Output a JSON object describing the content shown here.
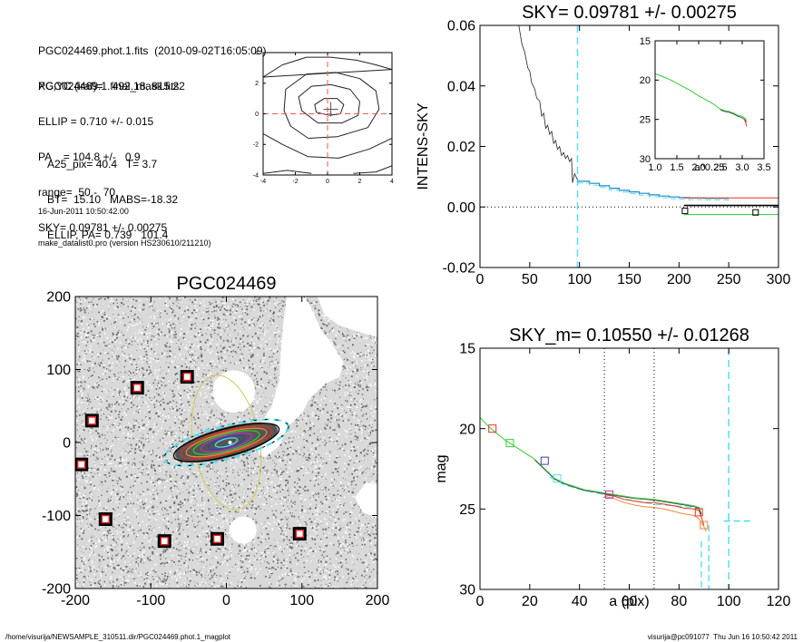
{
  "info": {
    "lines_a": [
      "PGC024469.phot.1.fits  (2010-09-02T16:05:09)",
      "PGC024469.1.final_mask.fits"
    ],
    "lines_b": [
      "XC,YC (iraf)=   492.18, 815.22",
      "ELLIP = 0.710 +/- 0.015",
      "PA    = 104.8 +/-   0.9",
      "range=  50.-  70.",
      "SKY= 0.09781 +/- 0.00275"
    ],
    "lines_c": [
      "A25_pix= 40.4   T= 3.7",
      "BT=  15.10   MABS=-18.32",
      "ELLIP, PA= 0.739   101.4"
    ],
    "lines_d": [
      "16-Jun-2011 10:50:42.00",
      "make_datalist0.pro (version HS230610/211210)"
    ]
  },
  "footer": {
    "left": "/home/visurija/NEWSAMPLE_310511.dir/PGC024469.phot.1_magplot",
    "right": "visurija@pc091077  Thu Jun 16 10:50:42 2011"
  },
  "colors": {
    "cyan": "#55ddee",
    "green": "#33cc33",
    "red": "#dd3322",
    "orange": "#ee8833",
    "blue": "#3344aa",
    "purple": "#bb33bb",
    "gray": "#777777",
    "yellow": "#cccc55"
  },
  "chart_data": [
    {
      "id": "contour",
      "type": "contour",
      "xlim": [
        -4,
        4
      ],
      "ylim": [
        -4,
        4
      ],
      "xticks": [
        -4,
        -2,
        0,
        2,
        4
      ],
      "yticks": [
        -4,
        -2,
        0,
        2,
        4
      ],
      "center": [
        0.2,
        0.3
      ],
      "contours": [
        [
          [
            0.1,
            -0.1
          ],
          [
            0.8,
            0
          ],
          [
            1.0,
            0.6
          ],
          [
            0.6,
            1.0
          ],
          [
            -0.2,
            1.0
          ],
          [
            -0.8,
            0.6
          ],
          [
            -0.7,
            0.1
          ]
        ],
        [
          [
            -0.6,
            -0.6
          ],
          [
            0.9,
            -0.6
          ],
          [
            1.9,
            -0.1
          ],
          [
            2.0,
            0.8
          ],
          [
            1.4,
            1.6
          ],
          [
            0.2,
            1.9
          ],
          [
            -1.0,
            1.8
          ],
          [
            -1.8,
            1.1
          ],
          [
            -1.6,
            0.2
          ]
        ],
        [
          [
            -1.2,
            -1.6
          ],
          [
            0.6,
            -1.5
          ],
          [
            2.5,
            -0.9
          ],
          [
            3.2,
            0.3
          ],
          [
            3.0,
            1.5
          ],
          [
            2.0,
            2.3
          ],
          [
            0.5,
            2.7
          ],
          [
            -1.3,
            2.6
          ],
          [
            -2.6,
            1.6
          ],
          [
            -2.7,
            0.2
          ],
          [
            -2.3,
            -0.8
          ]
        ],
        [
          [
            -4,
            -1.3
          ],
          [
            -2.8,
            -2.0
          ],
          [
            -1.2,
            -2.8
          ],
          [
            0.7,
            -2.9
          ],
          [
            2.6,
            -2.3
          ],
          [
            4,
            -1.6
          ]
        ],
        [
          [
            -4,
            2.4
          ],
          [
            -2.8,
            3.2
          ],
          [
            -1.3,
            3.7
          ],
          [
            0.2,
            3.7
          ],
          [
            1.8,
            3.5
          ],
          [
            3.0,
            3.2
          ],
          [
            4,
            2.9
          ]
        ]
      ],
      "outer_lines": [
        [
          [
            -4,
            -3.9
          ],
          [
            -2.5,
            -3.7
          ],
          [
            -1.0,
            -3.9
          ]
        ],
        [
          [
            1.6,
            -3.9
          ],
          [
            3.0,
            -3.8
          ],
          [
            4,
            -3.4
          ]
        ]
      ]
    },
    {
      "id": "sky",
      "type": "line",
      "title": "SKY= 0.09781 +/- 0.00275",
      "ylabel": "INTENS-SKY",
      "xlim": [
        0,
        300
      ],
      "ylim": [
        -0.02,
        0.06
      ],
      "xticks": [
        0,
        50,
        100,
        150,
        200,
        250,
        300
      ],
      "yticks": [
        -0.02,
        0.0,
        0.02,
        0.04,
        0.06
      ],
      "ytick_labels": [
        "-0.02",
        "0.00",
        "0.02",
        "0.04",
        "0.06"
      ],
      "vline": 98,
      "hline": 0,
      "profile_raw": [
        [
          38,
          0.062
        ],
        [
          42,
          0.054
        ],
        [
          45,
          0.051
        ],
        [
          48,
          0.046
        ],
        [
          50,
          0.045
        ],
        [
          52,
          0.041
        ],
        [
          55,
          0.039
        ],
        [
          57,
          0.036
        ],
        [
          60,
          0.035
        ],
        [
          62,
          0.03
        ],
        [
          64,
          0.031
        ],
        [
          66,
          0.026
        ],
        [
          68,
          0.027
        ],
        [
          70,
          0.024
        ],
        [
          72,
          0.025
        ],
        [
          74,
          0.021
        ],
        [
          76,
          0.022
        ],
        [
          78,
          0.019
        ],
        [
          80,
          0.02
        ],
        [
          82,
          0.017
        ],
        [
          84,
          0.018
        ],
        [
          86,
          0.016
        ],
        [
          88,
          0.017
        ],
        [
          90,
          0.015
        ],
        [
          92,
          0.016
        ],
        [
          93,
          0.008
        ],
        [
          95,
          0.011
        ],
        [
          98,
          0.009
        ]
      ],
      "profile_steps": [
        [
          98,
          0.0085
        ],
        [
          110,
          0.0078
        ],
        [
          120,
          0.007
        ],
        [
          130,
          0.0062
        ],
        [
          140,
          0.0055
        ],
        [
          150,
          0.005
        ],
        [
          160,
          0.0045
        ],
        [
          170,
          0.004
        ],
        [
          180,
          0.0036
        ],
        [
          190,
          0.0033
        ],
        [
          200,
          0.0031
        ],
        [
          210,
          0.003
        ],
        [
          225,
          0.0029
        ],
        [
          240,
          0.0029
        ],
        [
          250,
          0.0029
        ]
      ],
      "sky_levels": [
        {
          "x": [
            205,
            300
          ],
          "y": 0.003,
          "color": "#dd3322"
        },
        {
          "x": [
            205,
            300
          ],
          "y": 0.0005,
          "color": "#000000"
        },
        {
          "x": [
            205,
            300
          ],
          "y": -0.0025,
          "color": "#33cc33"
        }
      ],
      "markers": [
        [
          206,
          -0.0013
        ],
        [
          277,
          -0.0018
        ]
      ]
    },
    {
      "id": "inset",
      "type": "line",
      "xlabel": "a^0.25",
      "xlim": [
        1.0,
        3.5
      ],
      "ylim": [
        30,
        15
      ],
      "xticks": [
        1.0,
        1.5,
        2.0,
        2.5,
        3.0,
        3.5
      ],
      "xtick_labels": [
        "1.0",
        "1.5",
        "2.0",
        "2.5",
        "3.0",
        "3.5"
      ],
      "yticks": [
        15,
        20,
        25,
        30
      ],
      "green": [
        [
          1.0,
          19.2
        ],
        [
          1.2,
          19.6
        ],
        [
          1.4,
          20.1
        ],
        [
          1.6,
          20.7
        ],
        [
          1.8,
          21.3
        ],
        [
          2.0,
          22.0
        ],
        [
          2.2,
          22.6
        ],
        [
          2.3,
          22.9
        ],
        [
          2.4,
          23.3
        ],
        [
          2.5,
          23.7
        ],
        [
          2.6,
          23.9
        ],
        [
          2.7,
          24.0
        ],
        [
          2.8,
          24.2
        ],
        [
          2.9,
          24.5
        ],
        [
          3.0,
          24.6
        ],
        [
          3.05,
          24.8
        ],
        [
          3.1,
          25.1
        ]
      ],
      "dark": [
        [
          2.5,
          23.8
        ],
        [
          2.6,
          24.0
        ],
        [
          2.7,
          24.1
        ],
        [
          2.8,
          24.3
        ],
        [
          2.9,
          24.6
        ],
        [
          3.0,
          24.8
        ],
        [
          3.05,
          25.0
        ],
        [
          3.1,
          25.3
        ]
      ],
      "red": [
        [
          3.05,
          25.0
        ],
        [
          3.08,
          25.4
        ],
        [
          3.1,
          25.9
        ]
      ]
    },
    {
      "id": "sky_m",
      "type": "line",
      "title": "SKY_m=  0.10550 +/- 0.01268",
      "xlabel": "a (pix)",
      "ylabel": "mag",
      "xlim": [
        0,
        120
      ],
      "ylim": [
        30,
        15
      ],
      "xticks": [
        0,
        20,
        40,
        60,
        80,
        100,
        120
      ],
      "yticks": [
        15,
        20,
        25,
        30
      ],
      "range_lines": [
        50,
        70
      ],
      "vline": 100,
      "green": [
        [
          0,
          19.3
        ],
        [
          3,
          19.8
        ],
        [
          6,
          20.2
        ],
        [
          10,
          20.7
        ],
        [
          14,
          21.1
        ],
        [
          18,
          21.5
        ],
        [
          22,
          21.9
        ],
        [
          26,
          22.5
        ],
        [
          30,
          23.1
        ],
        [
          34,
          23.4
        ],
        [
          38,
          23.6
        ],
        [
          42,
          23.8
        ],
        [
          46,
          23.9
        ],
        [
          50,
          24.0
        ],
        [
          54,
          24.1
        ],
        [
          58,
          24.2
        ],
        [
          62,
          24.3
        ],
        [
          66,
          24.35
        ],
        [
          70,
          24.4
        ],
        [
          74,
          24.5
        ],
        [
          78,
          24.6
        ],
        [
          82,
          24.7
        ],
        [
          86,
          24.8
        ],
        [
          88,
          24.9
        ],
        [
          89,
          25.3
        ]
      ],
      "red": [
        [
          50,
          24.1
        ],
        [
          54,
          24.2
        ],
        [
          58,
          24.4
        ],
        [
          62,
          24.5
        ],
        [
          66,
          24.6
        ],
        [
          70,
          24.6
        ],
        [
          74,
          24.7
        ],
        [
          78,
          24.8
        ],
        [
          82,
          24.95
        ],
        [
          86,
          25.0
        ],
        [
          88,
          25.1
        ],
        [
          89,
          25.5
        ],
        [
          90,
          26.0
        ]
      ],
      "orange": [
        [
          50,
          24.2
        ],
        [
          54,
          24.35
        ],
        [
          58,
          24.6
        ],
        [
          62,
          24.75
        ],
        [
          66,
          24.85
        ],
        [
          70,
          24.9
        ],
        [
          74,
          25.0
        ],
        [
          78,
          25.15
        ],
        [
          82,
          25.3
        ],
        [
          86,
          25.4
        ],
        [
          88,
          25.6
        ],
        [
          90,
          26.1
        ],
        [
          91,
          26.4
        ]
      ],
      "cyan": [
        [
          28,
          23.0
        ],
        [
          34,
          23.5
        ],
        [
          42,
          23.85
        ],
        [
          50,
          24.1
        ],
        [
          56,
          24.3
        ],
        [
          62,
          24.5
        ],
        [
          70,
          24.7
        ],
        [
          78,
          24.8
        ],
        [
          86,
          24.9
        ],
        [
          89,
          25.0
        ]
      ],
      "cyan_drop": [
        [
          89,
          27.0
        ],
        [
          89,
          30
        ]
      ],
      "cyan_drop2": [
        [
          92,
          26.0
        ],
        [
          92,
          30
        ]
      ],
      "sky_level": [
        [
          98,
          25.75
        ],
        [
          110,
          25.75
        ]
      ],
      "markers": [
        [
          5,
          20.0,
          "#dd3322"
        ],
        [
          12,
          20.9,
          "#33cc33"
        ],
        [
          26,
          22.0,
          "#3344aa"
        ],
        [
          31,
          23.1,
          "#55ddee"
        ],
        [
          52,
          24.1,
          "#bb33bb"
        ],
        [
          88,
          25.2,
          "#dd3322"
        ],
        [
          90,
          26.0,
          "#ee8833"
        ]
      ]
    },
    {
      "id": "image",
      "type": "scatter",
      "title": "PGC024469",
      "xlim": [
        -200,
        200
      ],
      "ylim": [
        -200,
        200
      ],
      "xticks": [
        -200,
        -100,
        0,
        100,
        200
      ],
      "yticks": [
        -200,
        -100,
        0,
        100,
        200
      ],
      "galaxy_center": [
        0,
        0
      ],
      "masks": [
        [
          -178,
          30
        ],
        [
          -192,
          -30
        ],
        [
          -118,
          75
        ],
        [
          -52,
          90
        ],
        [
          -160,
          -105
        ],
        [
          -82,
          -135
        ],
        [
          -12,
          -132
        ],
        [
          97,
          -125
        ]
      ],
      "ellipses": [
        {
          "a": 85,
          "b": 22,
          "pa": 15,
          "color": "#55ddee",
          "dash": true
        },
        {
          "a": 72,
          "b": 18,
          "pa": 15,
          "color": "#000000"
        },
        {
          "a": 62,
          "b": 15,
          "pa": 15,
          "color": "#dd3322"
        },
        {
          "a": 55,
          "b": 13,
          "pa": 15,
          "color": "#ee8833"
        },
        {
          "a": 45,
          "b": 11,
          "pa": 15,
          "color": "#33cc33"
        },
        {
          "a": 35,
          "b": 9,
          "pa": 15,
          "color": "#bb33bb"
        },
        {
          "a": 25,
          "b": 7,
          "pa": 15,
          "color": "#3344aa"
        },
        {
          "a": 15,
          "b": 5,
          "pa": 15,
          "color": "#55ddee"
        }
      ],
      "ellipse_outer": {
        "a": 90,
        "b": 44,
        "pa": 100,
        "color": "#cccc55"
      },
      "holes": [
        [
          [
            85,
            220
          ],
          [
            110,
            190
          ],
          [
            125,
            155
          ],
          [
            140,
            135
          ],
          [
            155,
            110
          ],
          [
            150,
            90
          ],
          [
            130,
            80
          ],
          [
            110,
            60
          ],
          [
            100,
            40
          ],
          [
            80,
            20
          ],
          [
            70,
            -5
          ],
          [
            50,
            -20
          ],
          [
            40,
            -10
          ],
          [
            45,
            25
          ],
          [
            60,
            50
          ],
          [
            70,
            85
          ],
          [
            72,
            120
          ],
          [
            75,
            160
          ],
          [
            80,
            200
          ]
        ],
        [
          [
            215,
            140
          ],
          [
            180,
            150
          ],
          [
            150,
            160
          ],
          [
            130,
            175
          ],
          [
            120,
            200
          ],
          [
            215,
            200
          ]
        ],
        [
          [
            215,
            -110
          ],
          [
            180,
            -95
          ],
          [
            170,
            -75
          ],
          [
            185,
            -55
          ],
          [
            215,
            -60
          ]
        ]
      ],
      "hole_circles": [
        [
          10,
          70,
          28
        ],
        [
          22,
          -120,
          18
        ]
      ]
    }
  ]
}
